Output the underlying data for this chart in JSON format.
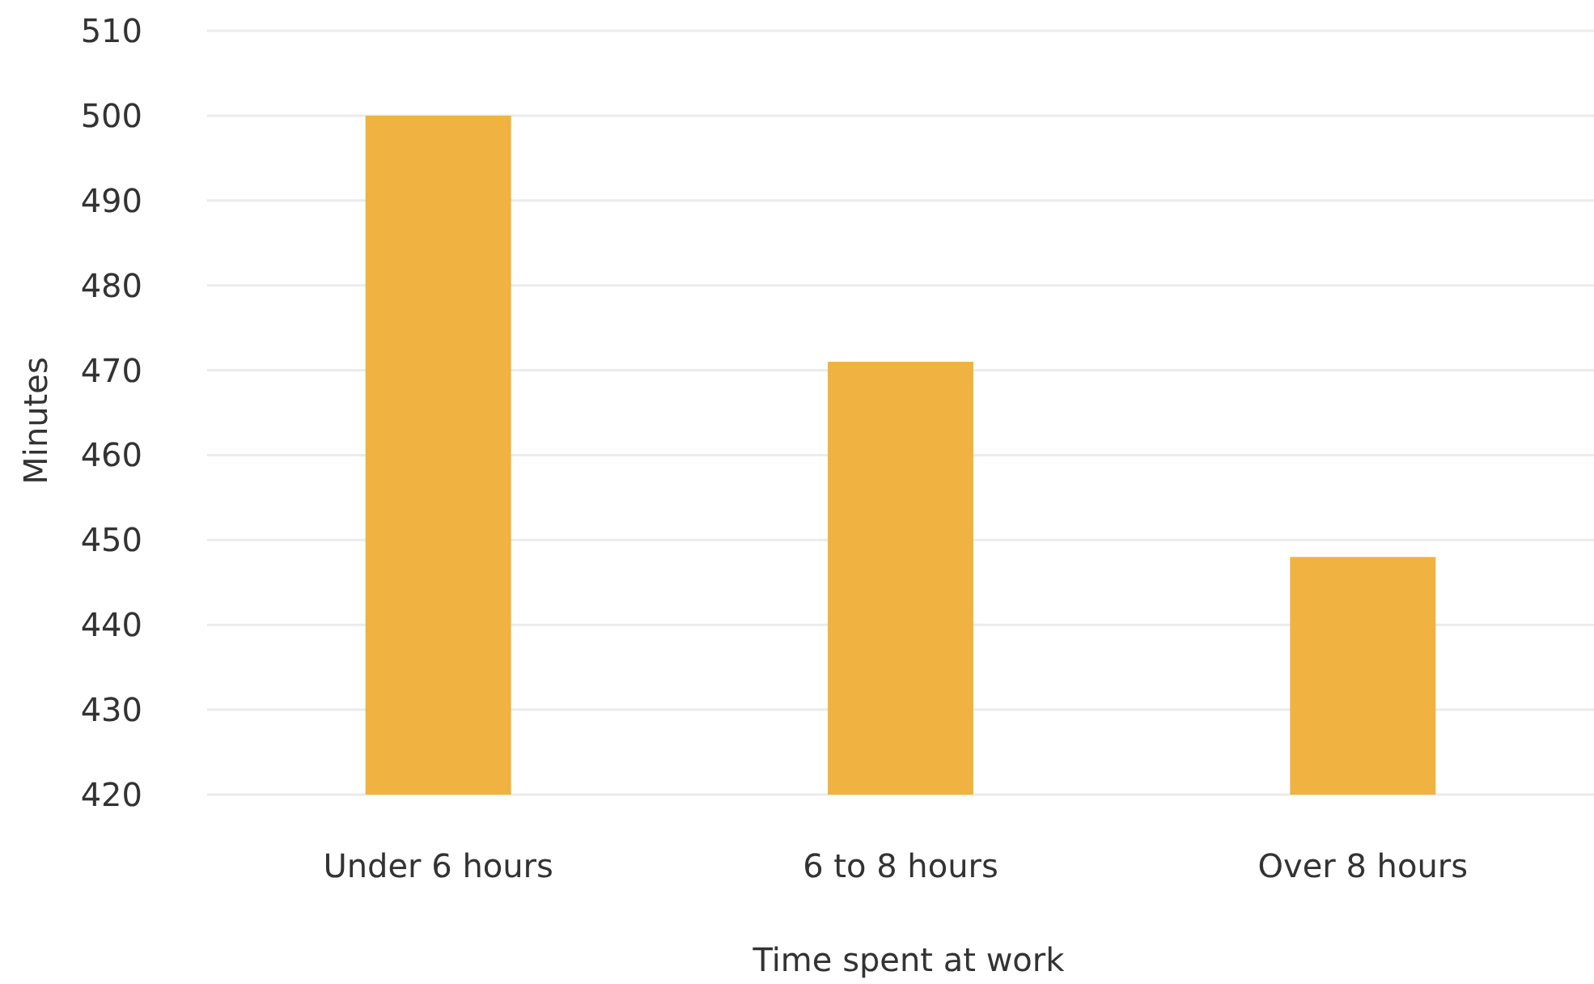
{
  "chart_data": {
    "type": "bar",
    "xlabel": "Time spent at work",
    "ylabel": "Minutes",
    "categories": [
      "Under 6 hours",
      "6 to 8 hours",
      "Over 8 hours"
    ],
    "values": [
      500,
      471,
      448
    ],
    "color": "#f0b342",
    "ylim": [
      420,
      510
    ],
    "yticks": [
      420,
      430,
      440,
      450,
      460,
      470,
      480,
      490,
      500,
      510
    ],
    "grid": "y"
  }
}
